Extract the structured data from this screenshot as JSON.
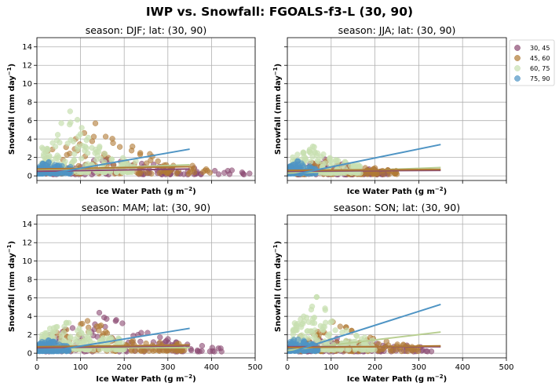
{
  "figure": {
    "title": "IWP vs. Snowfall: FGOALS-f3-L  (30, 90)"
  },
  "colors": {
    "30, 45": "#8b4a72",
    "45, 60": "#b07a35",
    "60, 75": "#c8dfb0",
    "75, 90": "#4e94c4"
  },
  "legend": {
    "placement": "upper-right outside",
    "entries": [
      "30, 45",
      "45, 60",
      "60, 75",
      "75, 90"
    ]
  },
  "chart_data": [
    {
      "type": "scatter",
      "title": "season: DJF; lat: (30, 90)",
      "xlabel": "Ice Water Path",
      "xlabel_unit": "(g m",
      "xlabel_exp": "−2",
      "ylabel": "Snowfall",
      "ylabel_unit": "(mm day",
      "ylabel_exp": "−1",
      "xlim": [
        0,
        500
      ],
      "ylim": [
        -0.5,
        15
      ],
      "xticks": [
        0,
        100,
        200,
        300,
        400,
        500
      ],
      "yticks": [
        0,
        2,
        4,
        6,
        8,
        10,
        12,
        14
      ],
      "show_xticklabels": false,
      "show_yticklabels": true,
      "grid": true,
      "series": [
        {
          "name": "30, 45",
          "x_range": [
            20,
            490
          ],
          "y_max": 1.8,
          "peak": 0.5,
          "fit": [
            [
              0,
              0.5
            ],
            [
              350,
              0.75
            ]
          ]
        },
        {
          "name": "45, 60",
          "x_range": [
            20,
            400
          ],
          "y_max": 5.7,
          "peak": 0.8,
          "fit": [
            [
              0,
              0.75
            ],
            [
              350,
              1.0
            ]
          ]
        },
        {
          "name": "60, 75",
          "x_range": [
            10,
            230
          ],
          "y_max": 7.0,
          "peak": 1.3,
          "fit": [
            [
              0,
              0.6
            ],
            [
              350,
              1.2
            ]
          ]
        },
        {
          "name": "75, 90",
          "x_range": [
            5,
            80
          ],
          "y_max": 1.5,
          "peak": 0.8,
          "fit": [
            [
              0,
              0.0
            ],
            [
              350,
              2.9
            ]
          ]
        }
      ]
    },
    {
      "type": "scatter",
      "title": "season: JJA; lat: (30, 90)",
      "xlabel": "Ice Water Path",
      "xlabel_unit": "(g m",
      "xlabel_exp": "−2",
      "ylabel": "Snowfall",
      "ylabel_unit": "(mm day",
      "ylabel_exp": "−1",
      "xlim": [
        0,
        500
      ],
      "ylim": [
        -0.5,
        15
      ],
      "xticks": [
        0,
        100,
        200,
        300,
        400,
        500
      ],
      "yticks": [
        0,
        2,
        4,
        6,
        8,
        10,
        12,
        14
      ],
      "show_xticklabels": false,
      "show_yticklabels": false,
      "grid": true,
      "series": [
        {
          "name": "30, 45",
          "x_range": [
            20,
            240
          ],
          "y_max": 1.8,
          "peak": 0.5,
          "fit": [
            [
              0,
              0.5
            ],
            [
              350,
              0.6
            ]
          ]
        },
        {
          "name": "45, 60",
          "x_range": [
            20,
            250
          ],
          "y_max": 1.6,
          "peak": 0.6,
          "fit": [
            [
              0,
              0.6
            ],
            [
              350,
              0.7
            ]
          ]
        },
        {
          "name": "60, 75",
          "x_range": [
            10,
            170
          ],
          "y_max": 3.2,
          "peak": 1.0,
          "fit": [
            [
              0,
              0.3
            ],
            [
              350,
              0.9
            ]
          ]
        },
        {
          "name": "75, 90",
          "x_range": [
            5,
            65
          ],
          "y_max": 1.6,
          "peak": 0.8,
          "fit": [
            [
              0,
              0.0
            ],
            [
              350,
              3.4
            ]
          ]
        }
      ]
    },
    {
      "type": "scatter",
      "title": "season: MAM; lat: (30, 90)",
      "xlabel": "Ice Water Path",
      "xlabel_unit": "(g m",
      "xlabel_exp": "−2",
      "ylabel": "Snowfall",
      "ylabel_unit": "(mm day",
      "ylabel_exp": "−1",
      "xlim": [
        0,
        500
      ],
      "ylim": [
        -0.5,
        15
      ],
      "xticks": [
        0,
        100,
        200,
        300,
        400,
        500
      ],
      "yticks": [
        0,
        2,
        4,
        6,
        8,
        10,
        12,
        14
      ],
      "show_xticklabels": true,
      "show_yticklabels": true,
      "grid": true,
      "series": [
        {
          "name": "30, 45",
          "x_range": [
            20,
            430
          ],
          "y_max": 4.4,
          "peak": 0.6,
          "fit": [
            [
              0,
              0.6
            ],
            [
              350,
              0.8
            ]
          ]
        },
        {
          "name": "45, 60",
          "x_range": [
            20,
            340
          ],
          "y_max": 3.5,
          "peak": 0.8,
          "fit": [
            [
              0,
              0.7
            ],
            [
              350,
              0.9
            ]
          ]
        },
        {
          "name": "60, 75",
          "x_range": [
            10,
            200
          ],
          "y_max": 3.3,
          "peak": 1.3,
          "fit": [
            [
              0,
              0.6
            ],
            [
              350,
              0.6
            ]
          ]
        },
        {
          "name": "75, 90",
          "x_range": [
            5,
            75
          ],
          "y_max": 1.4,
          "peak": 0.7,
          "fit": [
            [
              0,
              0.0
            ],
            [
              350,
              2.7
            ]
          ]
        }
      ]
    },
    {
      "type": "scatter",
      "title": "season: SON; lat: (30, 90)",
      "xlabel": "Ice Water Path",
      "xlabel_unit": "(g m",
      "xlabel_exp": "−2",
      "ylabel": "Snowfall",
      "ylabel_unit": "(mm day",
      "ylabel_exp": "−1",
      "xlim": [
        0,
        500
      ],
      "ylim": [
        -0.5,
        15
      ],
      "xticks": [
        0,
        100,
        200,
        300,
        400,
        500
      ],
      "yticks": [
        0,
        2,
        4,
        6,
        8,
        10,
        12,
        14
      ],
      "show_xticklabels": true,
      "show_yticklabels": false,
      "grid": true,
      "series": [
        {
          "name": "30, 45",
          "x_range": [
            20,
            330
          ],
          "y_max": 1.6,
          "peak": 0.6,
          "fit": [
            [
              0,
              0.7
            ],
            [
              350,
              0.7
            ]
          ]
        },
        {
          "name": "45, 60",
          "x_range": [
            20,
            300
          ],
          "y_max": 3.4,
          "peak": 0.7,
          "fit": [
            [
              0,
              0.6
            ],
            [
              350,
              0.8
            ]
          ]
        },
        {
          "name": "60, 75",
          "x_range": [
            10,
            200
          ],
          "y_max": 6.1,
          "peak": 1.2,
          "fit": [
            [
              0,
              0.3
            ],
            [
              350,
              2.3
            ]
          ]
        },
        {
          "name": "75, 90",
          "x_range": [
            5,
            70
          ],
          "y_max": 1.5,
          "peak": 0.8,
          "fit": [
            [
              0,
              0.0
            ],
            [
              350,
              5.3
            ]
          ]
        }
      ]
    }
  ]
}
